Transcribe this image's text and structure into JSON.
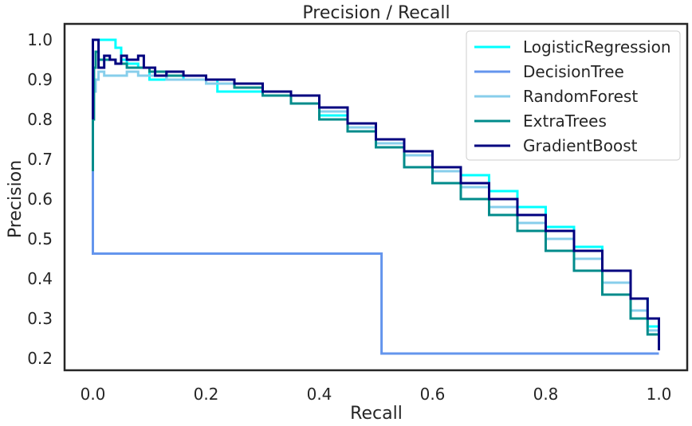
{
  "chart_data": {
    "type": "line",
    "title": "Precision / Recall",
    "xlabel": "Recall",
    "ylabel": "Precision",
    "xlim": [
      -0.05,
      1.05
    ],
    "ylim": [
      0.17,
      1.04
    ],
    "xticks": [
      0.0,
      0.2,
      0.4,
      0.6,
      0.8,
      1.0
    ],
    "xtick_labels": [
      "0.0",
      "0.2",
      "0.4",
      "0.6",
      "0.8",
      "1.0"
    ],
    "yticks": [
      0.2,
      0.3,
      0.4,
      0.5,
      0.6,
      0.7,
      0.8,
      0.9,
      1.0
    ],
    "ytick_labels": [
      "0.2",
      "0.3",
      "0.4",
      "0.5",
      "0.6",
      "0.7",
      "0.8",
      "0.9",
      "1.0"
    ],
    "grid": false,
    "legend_position": "top-right",
    "series": [
      {
        "name": "LogisticRegression",
        "color": "#00ffff",
        "x": [
          0.0,
          0.0,
          0.005,
          0.01,
          0.02,
          0.03,
          0.04,
          0.05,
          0.06,
          0.08,
          0.1,
          0.13,
          0.16,
          0.2,
          0.22,
          0.25,
          0.3,
          0.35,
          0.4,
          0.45,
          0.5,
          0.55,
          0.6,
          0.65,
          0.7,
          0.75,
          0.8,
          0.85,
          0.9,
          0.95,
          0.98,
          1.0
        ],
        "y": [
          0.9,
          1.0,
          1.0,
          1.0,
          1.0,
          1.0,
          0.98,
          0.95,
          0.94,
          0.93,
          0.9,
          0.91,
          0.9,
          0.9,
          0.87,
          0.87,
          0.86,
          0.84,
          0.81,
          0.78,
          0.75,
          0.71,
          0.68,
          0.66,
          0.62,
          0.58,
          0.53,
          0.48,
          0.42,
          0.35,
          0.28,
          0.22
        ]
      },
      {
        "name": "DecisionTree",
        "color": "#6495ed",
        "x": [
          0.0,
          0.0,
          0.0,
          0.51,
          0.51,
          1.0
        ],
        "y": [
          1.0,
          0.68,
          0.463,
          0.463,
          0.212,
          0.212
        ]
      },
      {
        "name": "RandomForest",
        "color": "#87ceeb",
        "x": [
          0.0,
          0.0,
          0.005,
          0.01,
          0.02,
          0.04,
          0.06,
          0.08,
          0.1,
          0.13,
          0.16,
          0.2,
          0.25,
          0.3,
          0.35,
          0.4,
          0.45,
          0.5,
          0.55,
          0.6,
          0.65,
          0.7,
          0.75,
          0.8,
          0.85,
          0.9,
          0.95,
          0.98,
          1.0
        ],
        "y": [
          0.8,
          0.87,
          0.9,
          0.92,
          0.91,
          0.91,
          0.92,
          0.91,
          0.91,
          0.9,
          0.9,
          0.89,
          0.88,
          0.86,
          0.84,
          0.82,
          0.78,
          0.74,
          0.71,
          0.67,
          0.63,
          0.58,
          0.54,
          0.5,
          0.45,
          0.39,
          0.32,
          0.27,
          0.22
        ]
      },
      {
        "name": "ExtraTrees",
        "color": "#008b8b",
        "x": [
          0.0,
          0.0,
          0.002,
          0.005,
          0.01,
          0.02,
          0.04,
          0.06,
          0.08,
          0.1,
          0.13,
          0.16,
          0.2,
          0.25,
          0.3,
          0.35,
          0.4,
          0.45,
          0.5,
          0.55,
          0.6,
          0.65,
          0.7,
          0.75,
          0.8,
          0.85,
          0.9,
          0.95,
          0.98,
          1.0
        ],
        "y": [
          0.67,
          0.8,
          0.93,
          0.97,
          0.95,
          0.95,
          0.94,
          0.93,
          0.93,
          0.92,
          0.91,
          0.91,
          0.9,
          0.88,
          0.86,
          0.84,
          0.8,
          0.77,
          0.73,
          0.68,
          0.64,
          0.6,
          0.56,
          0.52,
          0.47,
          0.42,
          0.36,
          0.3,
          0.26,
          0.22
        ]
      },
      {
        "name": "GradientBoost",
        "color": "#00007f",
        "x": [
          0.0,
          0.0,
          0.01,
          0.01,
          0.02,
          0.03,
          0.04,
          0.05,
          0.06,
          0.08,
          0.09,
          0.1,
          0.11,
          0.13,
          0.16,
          0.2,
          0.25,
          0.3,
          0.35,
          0.4,
          0.45,
          0.5,
          0.55,
          0.6,
          0.65,
          0.7,
          0.75,
          0.8,
          0.85,
          0.9,
          0.95,
          0.98,
          1.0
        ],
        "y": [
          0.8,
          1.0,
          1.0,
          0.93,
          0.96,
          0.95,
          0.94,
          0.96,
          0.95,
          0.96,
          0.93,
          0.93,
          0.91,
          0.92,
          0.91,
          0.9,
          0.89,
          0.87,
          0.86,
          0.83,
          0.79,
          0.75,
          0.72,
          0.68,
          0.64,
          0.6,
          0.56,
          0.52,
          0.47,
          0.42,
          0.35,
          0.3,
          0.22
        ]
      }
    ]
  }
}
